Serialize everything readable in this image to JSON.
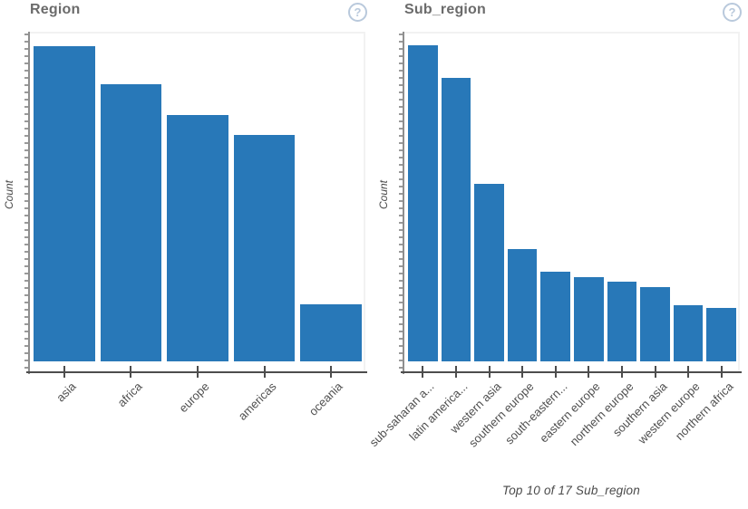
{
  "colors": {
    "bar": "#2878b8",
    "title_text": "#6b6b6b",
    "axis_dark": "#4d4d4d",
    "axis_gray": "#8f8f8f",
    "label_text": "#4f4f4f",
    "help_icon": "#b9c9dc",
    "plot_border": "#f2f2f2"
  },
  "help_icon_glyph": "?",
  "chart_data": [
    {
      "type": "bar",
      "title": "Region",
      "ylabel": "Count",
      "caption": "",
      "categories": [
        "asia",
        "africa",
        "europe",
        "americas",
        "oceania"
      ],
      "values": [
        95.6,
        84.1,
        74.7,
        68.7,
        17.3
      ],
      "value_unit": "percent_of_plot_height_estimated",
      "y_tick_labels_visible": false,
      "grid": false,
      "legend": "none",
      "x_label_rotation_deg": -45
    },
    {
      "type": "bar",
      "title": "Sub_region",
      "ylabel": "Count",
      "caption": "Top 10 of 17 Sub_region",
      "categories": [
        "sub-saharan a...",
        "latin america...",
        "western asia",
        "southern europe",
        "south-eastern...",
        "eastern europe",
        "northern europe",
        "southern asia",
        "western europe",
        "northern africa"
      ],
      "values": [
        95.9,
        86.0,
        53.8,
        34.1,
        27.2,
        25.5,
        24.2,
        22.5,
        17.0,
        16.2
      ],
      "value_unit": "percent_of_plot_height_estimated",
      "y_tick_labels_visible": false,
      "grid": false,
      "legend": "none",
      "x_label_rotation_deg": -45
    }
  ]
}
